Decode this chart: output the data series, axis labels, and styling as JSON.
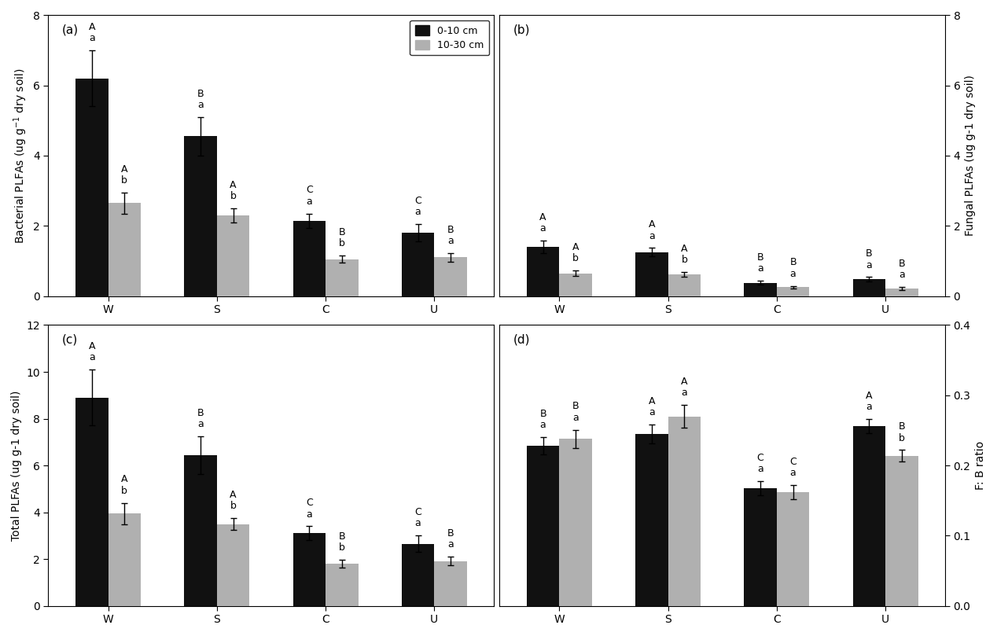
{
  "panels": {
    "a": {
      "title": "(a)",
      "ylabel": "Bacterial PLFAs (ug g$^{-1}$ dry soil)",
      "ylim": [
        0,
        8
      ],
      "yticks": [
        0,
        2,
        4,
        6,
        8
      ],
      "categories": [
        "W",
        "S",
        "C",
        "U"
      ],
      "black_values": [
        6.2,
        4.55,
        2.15,
        1.8
      ],
      "gray_values": [
        2.65,
        2.3,
        1.05,
        1.1
      ],
      "black_errors": [
        0.8,
        0.55,
        0.2,
        0.25
      ],
      "gray_errors": [
        0.3,
        0.2,
        0.1,
        0.12
      ],
      "black_upper_labels": [
        "A",
        "B",
        "C",
        "C"
      ],
      "black_lower_labels": [
        "a",
        "a",
        "a",
        "a"
      ],
      "gray_upper_labels": [
        "A",
        "A",
        "B",
        "B"
      ],
      "gray_lower_labels": [
        "b",
        "b",
        "b",
        "a"
      ]
    },
    "b": {
      "title": "(b)",
      "ylabel": "Fungal PLFAs (ug g-1 dry soil)",
      "ylim": [
        0,
        8
      ],
      "yticks": [
        0,
        2,
        4,
        6,
        8
      ],
      "categories": [
        "W",
        "S",
        "C",
        "U"
      ],
      "black_values": [
        1.4,
        1.25,
        0.38,
        0.48
      ],
      "gray_values": [
        0.65,
        0.62,
        0.25,
        0.22
      ],
      "black_errors": [
        0.18,
        0.12,
        0.05,
        0.06
      ],
      "gray_errors": [
        0.08,
        0.07,
        0.04,
        0.04
      ],
      "black_upper_labels": [
        "A",
        "A",
        "B",
        "B"
      ],
      "black_lower_labels": [
        "a",
        "a",
        "a",
        "a"
      ],
      "gray_upper_labels": [
        "A",
        "A",
        "B",
        "B"
      ],
      "gray_lower_labels": [
        "b",
        "b",
        "a",
        "a"
      ]
    },
    "c": {
      "title": "(c)",
      "ylabel": "Total PLFAs (ug g-1 dry soil)",
      "ylim": [
        0,
        12
      ],
      "yticks": [
        0,
        2,
        4,
        6,
        8,
        10,
        12
      ],
      "categories": [
        "W",
        "S",
        "C",
        "U"
      ],
      "black_values": [
        8.9,
        6.45,
        3.1,
        2.65
      ],
      "gray_values": [
        3.95,
        3.5,
        1.8,
        1.92
      ],
      "black_errors": [
        1.2,
        0.8,
        0.3,
        0.35
      ],
      "gray_errors": [
        0.45,
        0.25,
        0.18,
        0.18
      ],
      "black_upper_labels": [
        "A",
        "B",
        "C",
        "C"
      ],
      "black_lower_labels": [
        "a",
        "a",
        "a",
        "a"
      ],
      "gray_upper_labels": [
        "A",
        "A",
        "B",
        "B"
      ],
      "gray_lower_labels": [
        "b",
        "b",
        "b",
        "a"
      ]
    },
    "d": {
      "title": "(d)",
      "ylabel": "F: B ratio",
      "ylim": [
        0.0,
        0.4
      ],
      "yticks": [
        0.0,
        0.1,
        0.2,
        0.3,
        0.4
      ],
      "categories": [
        "W",
        "S",
        "C",
        "U"
      ],
      "black_values": [
        0.228,
        0.245,
        0.168,
        0.256
      ],
      "gray_values": [
        0.238,
        0.27,
        0.162,
        0.214
      ],
      "black_errors": [
        0.012,
        0.013,
        0.01,
        0.01
      ],
      "gray_errors": [
        0.013,
        0.016,
        0.01,
        0.008
      ],
      "black_upper_labels": [
        "B",
        "A",
        "C",
        "A"
      ],
      "black_lower_labels": [
        "a",
        "a",
        "a",
        "a"
      ],
      "gray_upper_labels": [
        "B",
        "A",
        "C",
        "B"
      ],
      "gray_lower_labels": [
        "a",
        "a",
        "a",
        "b"
      ]
    }
  },
  "legend_labels": [
    "0-10 cm",
    "10-30 cm"
  ],
  "black_color": "#111111",
  "gray_color": "#b0b0b0",
  "bar_width": 0.3,
  "label_fontsize": 9,
  "axis_label_fontsize": 10,
  "tick_fontsize": 10,
  "panel_label_fontsize": 11
}
